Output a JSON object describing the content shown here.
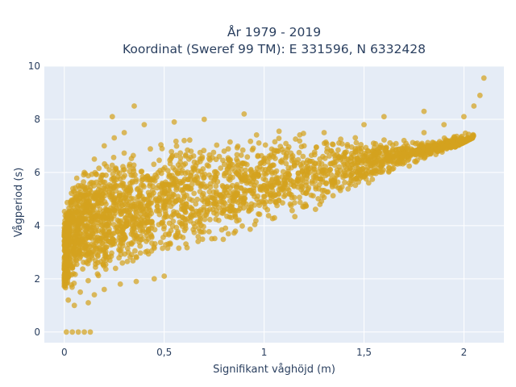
{
  "chart_data": {
    "type": "scatter",
    "title_line1": "År 1979 - 2019",
    "title_line2": "Koordinat (Sweref 99 TM): E 331596, N 6332428",
    "xlabel": "Signifikant våghöjd (m)",
    "ylabel": "Vågperiod (s)",
    "xlim": [
      -0.1,
      2.2
    ],
    "ylim": [
      -0.4,
      10
    ],
    "x_ticks": [
      0,
      0.5,
      1,
      1.5,
      2
    ],
    "x_tick_labels": [
      "0",
      "0,5",
      "1",
      "1,5",
      "2"
    ],
    "y_ticks": [
      0,
      2,
      4,
      6,
      8,
      10
    ],
    "y_tick_labels": [
      "0",
      "2",
      "4",
      "6",
      "8",
      "10"
    ],
    "grid": true,
    "marker_color": "#d4a21e",
    "background_color": "#e5ecf6",
    "series": [
      {
        "points": [
          [
            0.01,
            0.0
          ],
          [
            0.04,
            0.0
          ],
          [
            0.07,
            0.0
          ],
          [
            0.1,
            0.0
          ],
          [
            0.13,
            0.0
          ],
          [
            0.02,
            1.2
          ],
          [
            0.05,
            1.0
          ],
          [
            0.08,
            1.5
          ],
          [
            0.12,
            1.1
          ],
          [
            0.15,
            1.4
          ],
          [
            0.2,
            1.6
          ],
          [
            0.28,
            1.8
          ],
          [
            0.36,
            1.9
          ],
          [
            0.45,
            2.0
          ],
          [
            0.5,
            2.1
          ],
          [
            0.03,
            2.5
          ],
          [
            0.05,
            3.5
          ],
          [
            0.06,
            4.5
          ],
          [
            0.07,
            5.5
          ],
          [
            0.1,
            6.0
          ],
          [
            0.15,
            6.5
          ],
          [
            0.2,
            7.0
          ],
          [
            0.25,
            7.3
          ],
          [
            0.3,
            7.5
          ],
          [
            0.4,
            7.8
          ],
          [
            0.24,
            8.1
          ],
          [
            0.35,
            8.5
          ],
          [
            0.55,
            7.9
          ],
          [
            0.7,
            8.0
          ],
          [
            0.9,
            8.2
          ],
          [
            0.2,
            3.0
          ],
          [
            0.3,
            3.5
          ],
          [
            0.4,
            4.0
          ],
          [
            0.5,
            4.3
          ],
          [
            0.6,
            4.6
          ],
          [
            0.7,
            4.9
          ],
          [
            0.8,
            5.1
          ],
          [
            0.9,
            5.3
          ],
          [
            1.0,
            5.5
          ],
          [
            1.1,
            5.7
          ],
          [
            1.2,
            5.9
          ],
          [
            1.3,
            6.1
          ],
          [
            1.4,
            6.3
          ],
          [
            1.5,
            6.6
          ],
          [
            1.6,
            6.9
          ],
          [
            1.7,
            7.2
          ],
          [
            1.8,
            7.5
          ],
          [
            1.9,
            7.8
          ],
          [
            2.0,
            8.1
          ],
          [
            2.05,
            8.5
          ],
          [
            2.08,
            8.9
          ],
          [
            2.1,
            9.55
          ],
          [
            1.5,
            7.8
          ],
          [
            1.6,
            8.1
          ],
          [
            1.8,
            8.3
          ],
          [
            1.0,
            6.5
          ],
          [
            1.2,
            7.0
          ],
          [
            1.3,
            7.5
          ],
          [
            0.8,
            6.8
          ],
          [
            0.6,
            7.2
          ]
        ]
      }
    ]
  }
}
